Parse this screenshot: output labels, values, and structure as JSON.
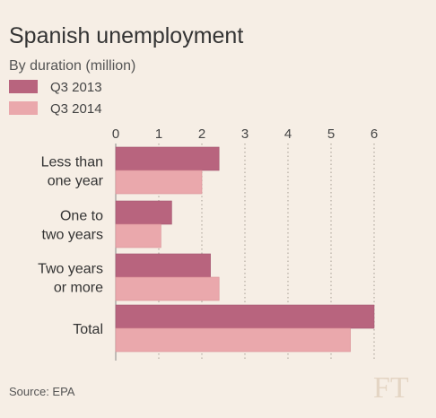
{
  "chart_data": {
    "type": "bar",
    "orientation": "horizontal",
    "title": "Spanish unemployment",
    "subtitle": "By duration (million)",
    "categories": [
      [
        "Less than",
        "one year"
      ],
      [
        "One to",
        "two years"
      ],
      [
        "Two years",
        "or more"
      ],
      [
        "Total"
      ]
    ],
    "series": [
      {
        "name": "Q3 2013",
        "color": "#b8647e",
        "values": [
          2.4,
          1.3,
          2.2,
          6.0
        ]
      },
      {
        "name": "Q3 2014",
        "color": "#eaa8ac",
        "values": [
          2.0,
          1.05,
          2.4,
          5.45
        ]
      }
    ],
    "xlim": [
      0,
      6
    ],
    "xticks": [
      0,
      1,
      2,
      3,
      4,
      5,
      6
    ],
    "x_axis_position": "top",
    "grid": true,
    "legend_position": "top-left"
  },
  "source": "Source: EPA",
  "logo": "FT"
}
